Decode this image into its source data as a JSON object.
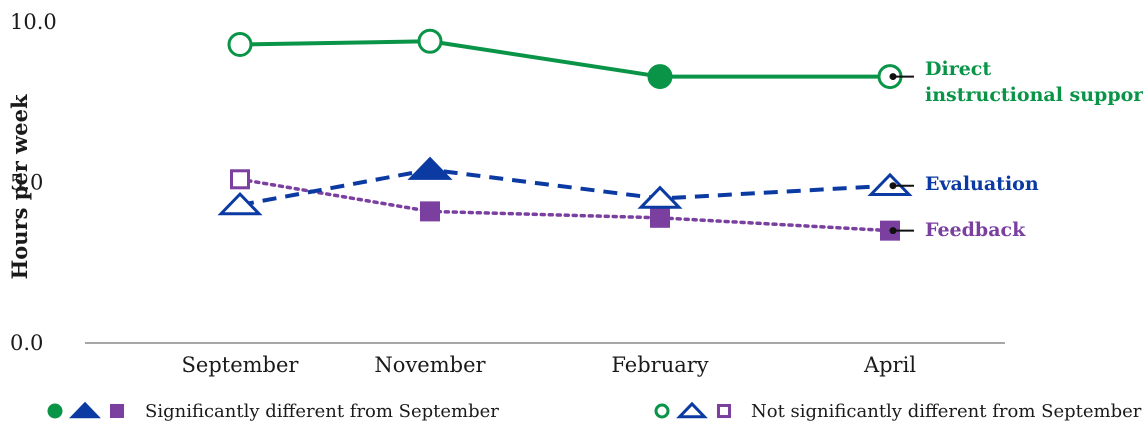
{
  "chart_data": {
    "type": "line",
    "ylabel": "Hours per week",
    "xlabel": "",
    "title": "",
    "categories": [
      "September",
      "November",
      "February",
      "April"
    ],
    "ylim": [
      0,
      10
    ],
    "yticks": [
      "0.0",
      "5.0",
      "10.0"
    ],
    "grid": false,
    "series": [
      {
        "name": "Direct instructional support",
        "label_lines": [
          "Direct",
          "instructional support"
        ],
        "color": "#0a9447",
        "marker": "circle",
        "line_style": "solid",
        "values": [
          9.3,
          9.4,
          8.3,
          8.3
        ],
        "significant": [
          false,
          false,
          true,
          false
        ]
      },
      {
        "name": "Evaluation",
        "label_lines": [
          "Evaluation"
        ],
        "color": "#0b3aa3",
        "marker": "triangle",
        "line_style": "dashed",
        "values": [
          4.3,
          5.4,
          4.5,
          4.9
        ],
        "significant": [
          false,
          true,
          false,
          false
        ]
      },
      {
        "name": "Feedback",
        "label_lines": [
          "Feedback"
        ],
        "color": "#7b3fa0",
        "marker": "square",
        "line_style": "dotted",
        "values": [
          5.1,
          4.1,
          3.9,
          3.5
        ],
        "significant": [
          false,
          true,
          true,
          true
        ]
      }
    ],
    "legend": {
      "placement": "bottom",
      "significant_label": "Significantly different from September",
      "not_significant_label": "Not significantly different from September"
    }
  }
}
